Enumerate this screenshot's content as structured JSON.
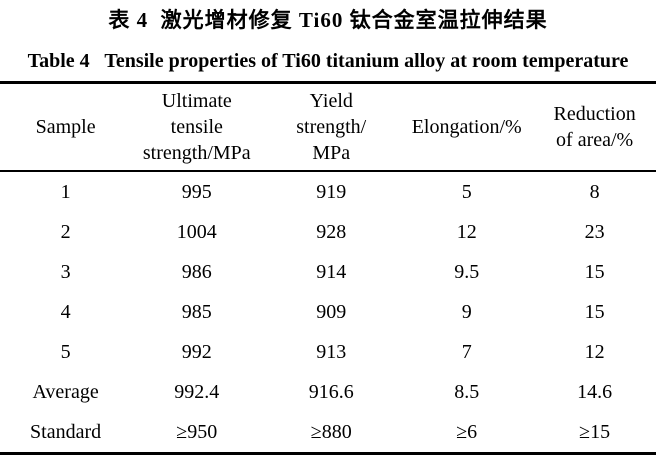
{
  "titles": {
    "chinese": "表 4  激光增材修复 Ti60 钛合金室温拉伸结果",
    "english": "Table 4   Tensile properties of Ti60 titanium alloy at room temperature"
  },
  "table": {
    "headers": [
      "Sample",
      "Ultimate\ntensile\nstrength/MPa",
      "Yield\nstrength/\nMPa",
      "Elongation/%",
      "Reduction\nof area/%"
    ],
    "rows": [
      [
        "1",
        "995",
        "919",
        "5",
        "8"
      ],
      [
        "2",
        "1004",
        "928",
        "12",
        "23"
      ],
      [
        "3",
        "986",
        "914",
        "9.5",
        "15"
      ],
      [
        "4",
        "985",
        "909",
        "9",
        "15"
      ],
      [
        "5",
        "992",
        "913",
        "7",
        "12"
      ],
      [
        "Average",
        "992.4",
        "916.6",
        "8.5",
        "14.6"
      ],
      [
        "Standard",
        "≥950",
        "≥880",
        "≥6",
        "≥15"
      ]
    ]
  }
}
